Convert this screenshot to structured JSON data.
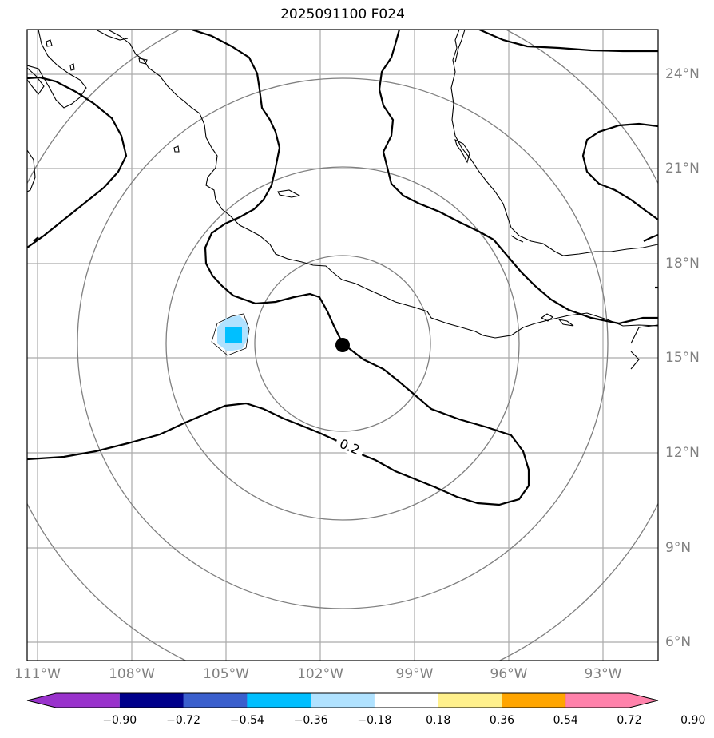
{
  "title": "2025091100 F024",
  "lat_labels": [
    "24°N",
    "21°N",
    "18°N",
    "15°N",
    "12°N",
    "9°N",
    "6°N"
  ],
  "lon_labels": [
    "111°W",
    "108°W",
    "105°W",
    "102°W",
    "99°W",
    "96°W",
    "93°W"
  ],
  "contour_label": "0.2",
  "colorbar": {
    "ticks": [
      "−0.90",
      "−0.72",
      "−0.54",
      "−0.36",
      "−0.18",
      "0.18",
      "0.36",
      "0.54",
      "0.72",
      "0.90"
    ],
    "colors": [
      "#9932cc",
      "#00008b",
      "#3a5fcd",
      "#00bfff",
      "#b0e2ff",
      "#ffffff",
      "#fff08c",
      "#ffa500",
      "#ff4500",
      "#b22222",
      "#ff82ab"
    ]
  },
  "center_marker": {
    "lat": 15.4,
    "lon": -101.3
  }
}
